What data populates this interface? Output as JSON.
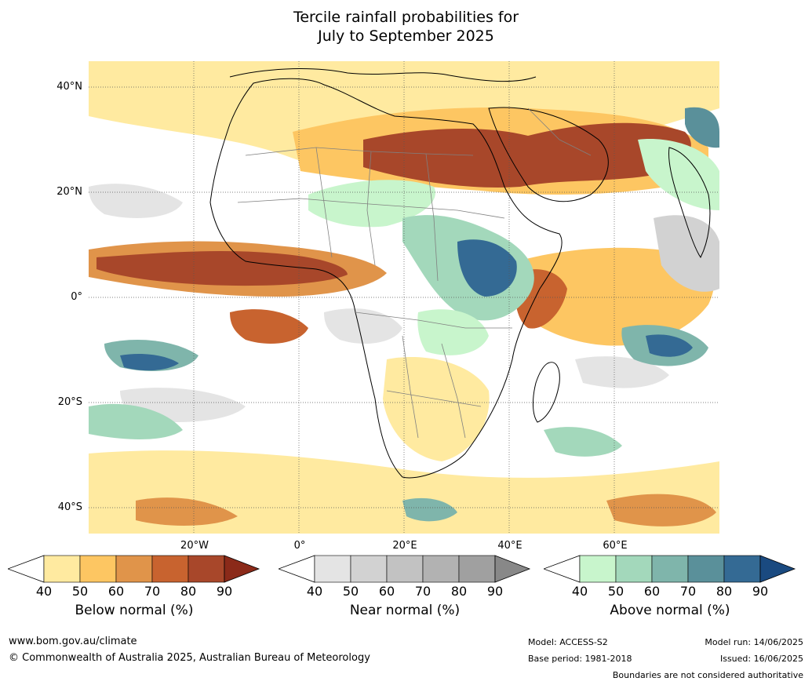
{
  "title": {
    "line1": "Tercile rainfall probabilities for",
    "line2": "July to September 2025"
  },
  "map": {
    "lat_labels": [
      "40°N",
      "20°N",
      "0°",
      "20°S",
      "40°S"
    ],
    "lon_labels": [
      "20°W",
      "0°",
      "20°E",
      "40°E",
      "60°E"
    ],
    "colors": {
      "below": [
        "#ffeaa0",
        "#fdc662",
        "#e0944a",
        "#c8632f",
        "#a8472a",
        "#8b2a19"
      ],
      "near": [
        "#e4e4e4",
        "#d2d2d2",
        "#c2c2c2",
        "#b2b2b2",
        "#a0a0a0",
        "#888888"
      ],
      "above": [
        "#c8f5cc",
        "#a3d8bb",
        "#7fb5ab",
        "#5a909a",
        "#346a94",
        "#1a4a80"
      ],
      "land": "#ffffff",
      "coast": "#000000",
      "borders": "#808080"
    }
  },
  "legend": [
    {
      "key": "below",
      "title": "Below normal (%)",
      "ticks": [
        "40",
        "50",
        "60",
        "70",
        "80",
        "90"
      ]
    },
    {
      "key": "near",
      "title": "Near normal (%)",
      "ticks": [
        "40",
        "50",
        "60",
        "70",
        "80",
        "90"
      ]
    },
    {
      "key": "above",
      "title": "Above normal (%)",
      "ticks": [
        "40",
        "50",
        "60",
        "70",
        "80",
        "90"
      ]
    }
  ],
  "footer": {
    "website": "www.bom.gov.au/climate",
    "copyright": "© Commonwealth of Australia 2025, Australian Bureau of Meteorology",
    "model": "Model: ACCESS-S2",
    "base_period": "Base period: 1981-2018",
    "model_run": "Model run: 14/06/2025",
    "issued": "Issued: 16/06/2025",
    "disclaimer": "Boundaries are not considered authoritative"
  }
}
